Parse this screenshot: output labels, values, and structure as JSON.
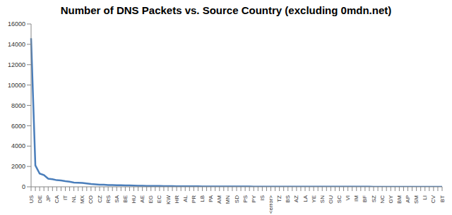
{
  "chart_data": {
    "type": "line",
    "title": "Number of DNS Packets vs. Source Country (excluding 0mdn.net)",
    "categories": [
      "US",
      null,
      "DE",
      null,
      "JP",
      null,
      "CA",
      null,
      "IT",
      null,
      "NL",
      null,
      "MX",
      null,
      "CO",
      null,
      "CZ",
      null,
      "RS",
      null,
      "SA",
      null,
      "BE",
      null,
      "HU",
      null,
      "AE",
      null,
      "EG",
      null,
      "EC",
      null,
      "KW",
      null,
      "HR",
      null,
      "AL",
      null,
      "PR",
      null,
      "LB",
      null,
      "PA",
      null,
      "AM",
      null,
      "MN",
      null,
      "SD",
      null,
      "PS",
      null,
      "PY",
      null,
      "IS",
      null,
      "<error>",
      null,
      "TZ",
      null,
      "BS",
      null,
      "AZ",
      null,
      "LA",
      null,
      "YE",
      null,
      "SN",
      null,
      "GU",
      null,
      "SC",
      null,
      "VI",
      null,
      "IM",
      null,
      "BF",
      null,
      "SZ",
      null,
      "NC",
      null,
      "GY",
      null,
      "BM",
      null,
      "AP",
      null,
      "SM",
      null,
      "LI",
      null,
      "CV",
      null,
      "BT"
    ],
    "values": [
      14600,
      2100,
      1300,
      1150,
      800,
      750,
      650,
      620,
      550,
      500,
      420,
      400,
      380,
      330,
      270,
      240,
      210,
      200,
      180,
      170,
      160,
      150,
      140,
      130,
      120,
      110,
      100,
      95,
      90,
      85,
      80,
      75,
      70,
      65,
      60,
      55,
      50,
      48,
      45,
      44,
      42,
      40,
      38,
      37,
      35,
      34,
      32,
      31,
      30,
      29,
      28,
      27,
      26,
      25,
      24,
      23,
      22,
      21,
      20,
      20,
      19,
      18,
      17,
      17,
      16,
      15,
      15,
      14,
      14,
      13,
      13,
      12,
      12,
      11,
      11,
      10,
      10,
      10,
      9,
      9,
      8,
      8,
      8,
      7,
      7,
      7,
      6,
      6,
      6,
      5,
      5,
      5,
      4,
      4,
      4,
      3,
      3
    ],
    "color": "#4a7ebb",
    "ylim": [
      0,
      16000
    ],
    "yticks": [
      0,
      2000,
      4000,
      6000,
      8000,
      10000,
      12000,
      14000,
      16000
    ],
    "grid": false
  }
}
